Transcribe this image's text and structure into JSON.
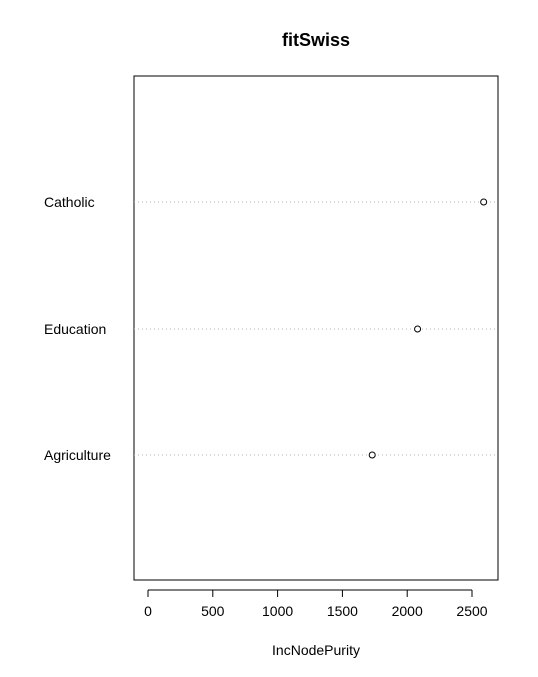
{
  "chart_data": {
    "type": "scatter",
    "title": "fitSwiss",
    "xlabel": "IncNodePurity",
    "ylabel": "",
    "categories": [
      "Catholic",
      "Education",
      "Agriculture"
    ],
    "values": [
      2590,
      2080,
      1730
    ],
    "xlim": [
      0,
      2700
    ],
    "xticks": [
      0,
      500,
      1000,
      1500,
      2000,
      2500
    ],
    "grid": "dotted horizontal lines per variable",
    "legend": "none"
  }
}
